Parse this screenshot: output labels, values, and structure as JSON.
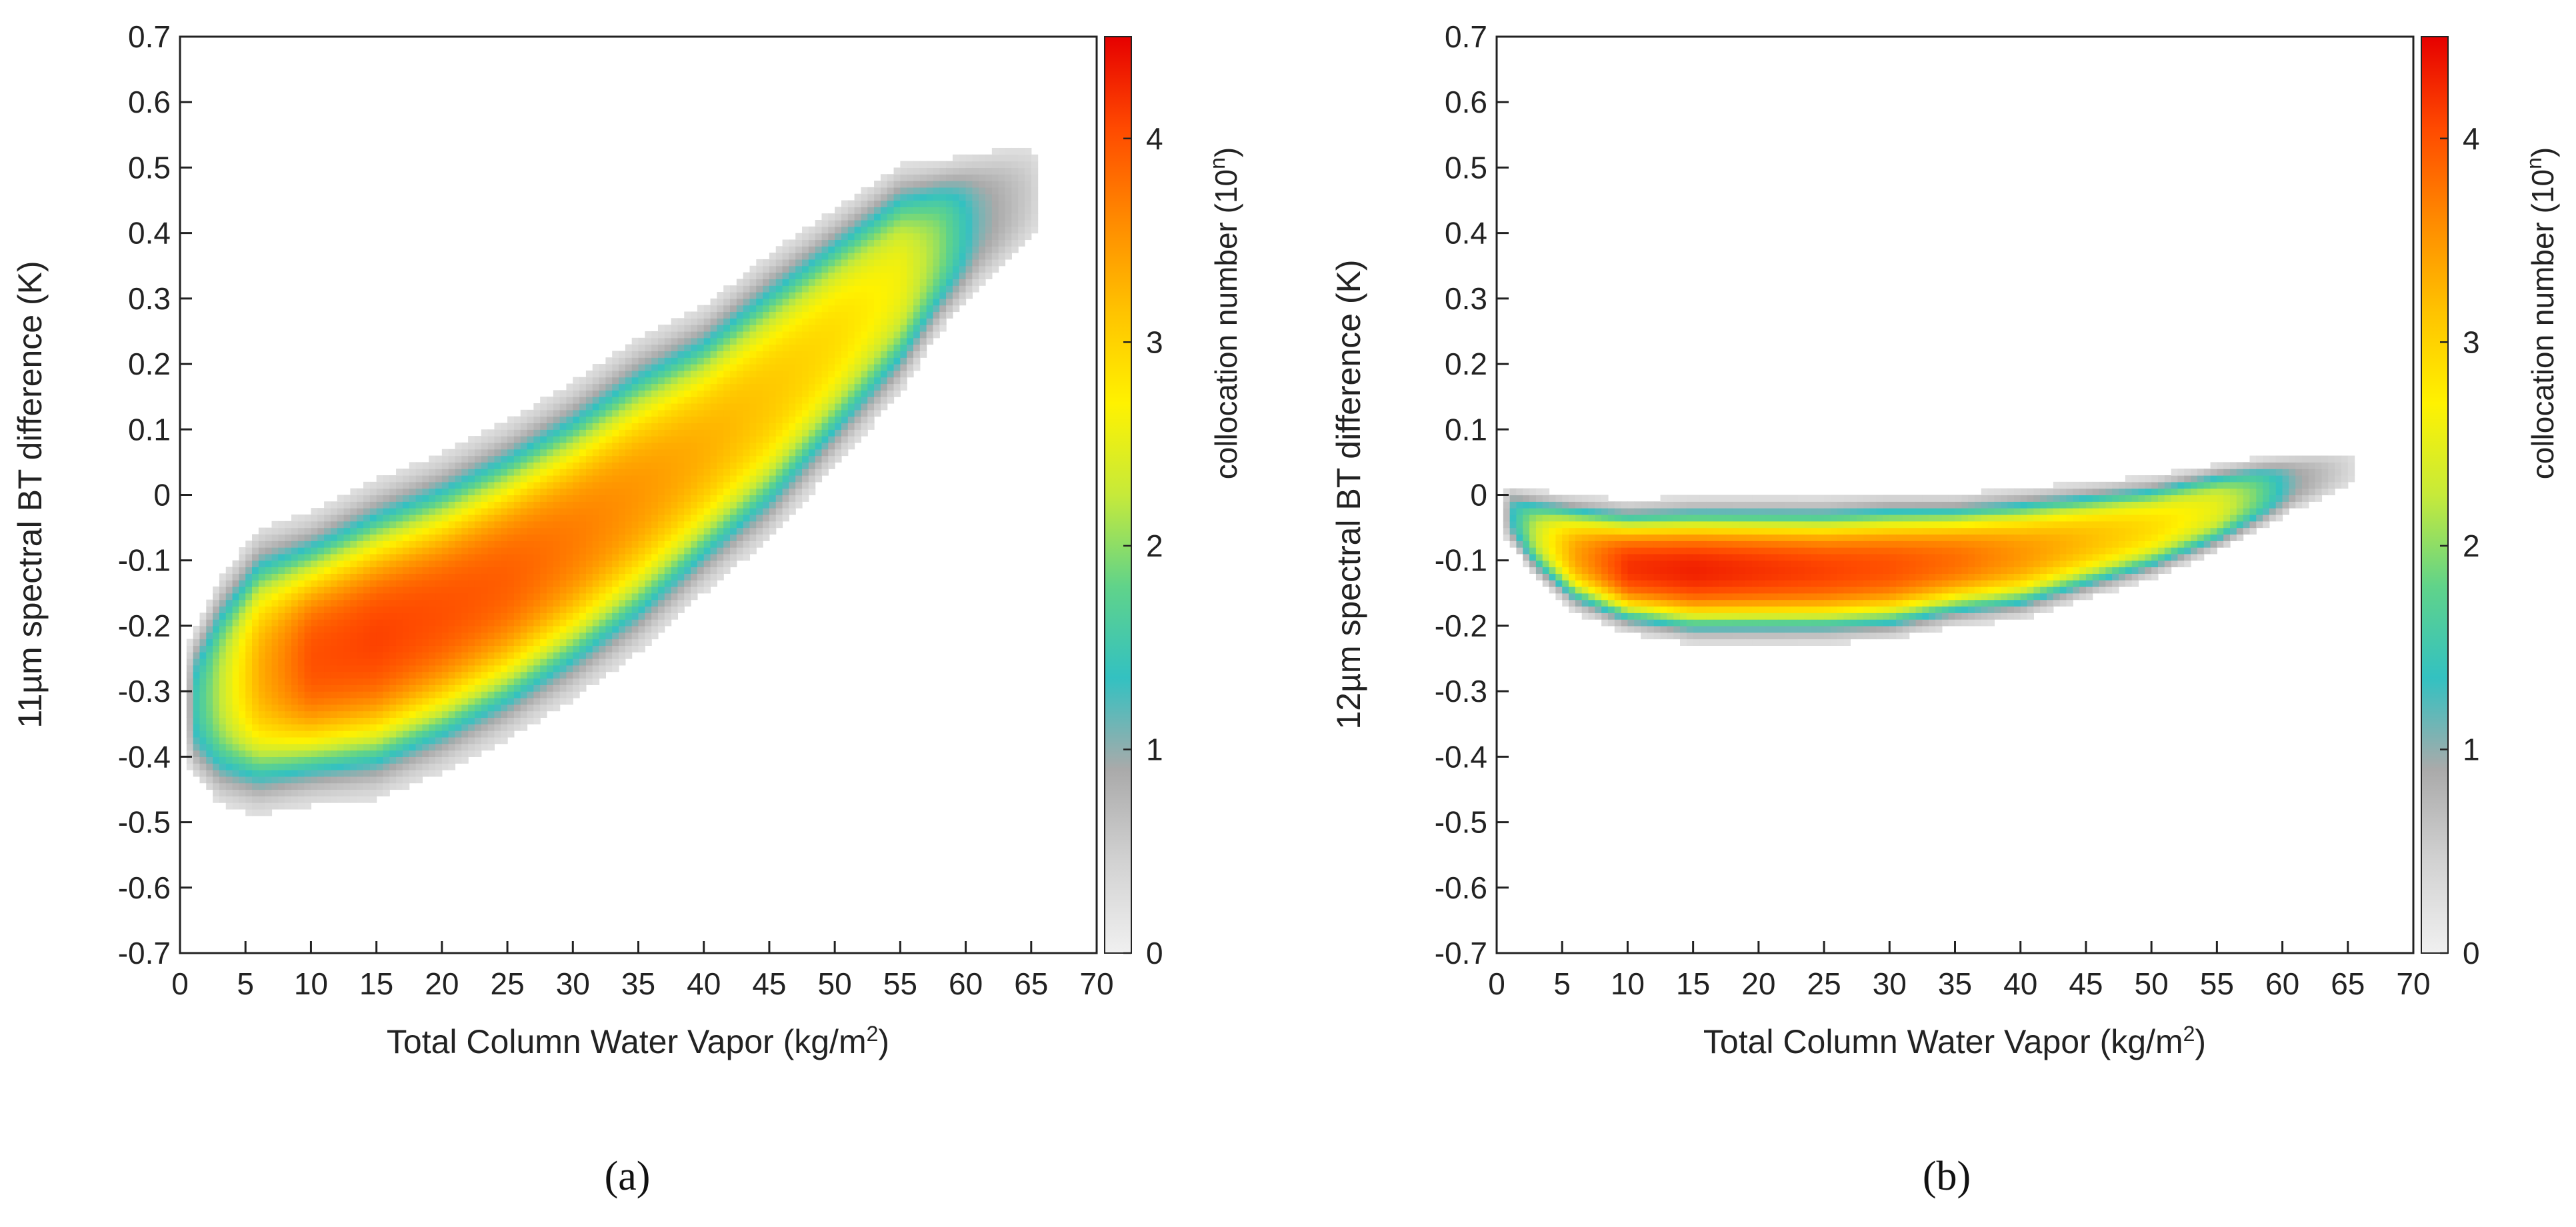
{
  "figure": {
    "captions": [
      "(a)",
      "(b)"
    ]
  },
  "colors": {
    "colormap": [
      "#f0f0f0",
      "#d2d2d2",
      "#aaaaaa",
      "#33c1c1",
      "#60d38a",
      "#c6ea3a",
      "#fff200",
      "#ffc300",
      "#ff8a00",
      "#ff4a00",
      "#e60000"
    ]
  },
  "chart_data": [
    {
      "type": "heatmap",
      "panel": "(a)",
      "xlabel": "Total Column Water Vapor (kg/m²)",
      "xlabel_main": "Total Column Water Vapor (kg/m",
      "xlabel_sup": "2",
      "xlabel_end": ")",
      "ylabel": "11µm spectral BT difference (K)",
      "xlim": [
        0,
        70
      ],
      "ylim": [
        -0.7,
        0.7
      ],
      "xticks": [
        "0",
        "5",
        "10",
        "15",
        "20",
        "25",
        "30",
        "35",
        "40",
        "45",
        "50",
        "55",
        "60",
        "65",
        "70"
      ],
      "yticks": [
        "0.7",
        "0.6",
        "0.5",
        "0.4",
        "0.3",
        "0.2",
        "0.1",
        "0",
        "-0.1",
        "-0.2",
        "-0.3",
        "-0.4",
        "-0.5",
        "-0.6",
        "-0.7"
      ],
      "colorbar": {
        "label_main": "collocation number (10",
        "label_sup": "n",
        "label_end": ")",
        "range": [
          0,
          4.5
        ],
        "ticks": [
          "0",
          "1",
          "2",
          "3",
          "4"
        ]
      },
      "density_ridge": [
        {
          "x": 1,
          "y": -0.32,
          "w": 0.06,
          "peak": 1.4
        },
        {
          "x": 3,
          "y": -0.3,
          "w": 0.09,
          "peak": 2.2
        },
        {
          "x": 6,
          "y": -0.27,
          "w": 0.11,
          "peak": 3.3
        },
        {
          "x": 10,
          "y": -0.25,
          "w": 0.11,
          "peak": 4.0
        },
        {
          "x": 15,
          "y": -0.22,
          "w": 0.12,
          "peak": 4.1
        },
        {
          "x": 20,
          "y": -0.18,
          "w": 0.12,
          "peak": 4.0
        },
        {
          "x": 25,
          "y": -0.13,
          "w": 0.12,
          "peak": 3.9
        },
        {
          "x": 30,
          "y": -0.07,
          "w": 0.12,
          "peak": 3.7
        },
        {
          "x": 35,
          "y": 0.0,
          "w": 0.12,
          "peak": 3.5
        },
        {
          "x": 40,
          "y": 0.07,
          "w": 0.11,
          "peak": 3.3
        },
        {
          "x": 45,
          "y": 0.15,
          "w": 0.11,
          "peak": 3.1
        },
        {
          "x": 50,
          "y": 0.24,
          "w": 0.1,
          "peak": 2.9
        },
        {
          "x": 55,
          "y": 0.33,
          "w": 0.09,
          "peak": 2.6
        },
        {
          "x": 58,
          "y": 0.38,
          "w": 0.07,
          "peak": 2.0
        },
        {
          "x": 61,
          "y": 0.42,
          "w": 0.06,
          "peak": 1.1
        },
        {
          "x": 65,
          "y": 0.46,
          "w": 0.05,
          "peak": 0.5
        }
      ]
    },
    {
      "type": "heatmap",
      "panel": "(b)",
      "xlabel": "Total Column Water Vapor (kg/m²)",
      "xlabel_main": "Total Column Water Vapor (kg/m",
      "xlabel_sup": "2",
      "xlabel_end": ")",
      "ylabel": "12µm spectral BT difference (K)",
      "xlim": [
        0,
        70
      ],
      "ylim": [
        -0.7,
        0.7
      ],
      "xticks": [
        "0",
        "5",
        "10",
        "15",
        "20",
        "25",
        "30",
        "35",
        "40",
        "45",
        "50",
        "55",
        "60",
        "65",
        "70"
      ],
      "yticks": [
        "0.7",
        "0.6",
        "0.5",
        "0.4",
        "0.3",
        "0.2",
        "0.1",
        "0",
        "-0.1",
        "-0.2",
        "-0.3",
        "-0.4",
        "-0.5",
        "-0.6",
        "-0.7"
      ],
      "colorbar": {
        "label_main": "collocation number (10",
        "label_sup": "n",
        "label_end": ")",
        "range": [
          0,
          4.5
        ],
        "ticks": [
          "0",
          "1",
          "2",
          "3",
          "4"
        ]
      },
      "density_ridge": [
        {
          "x": 1,
          "y": -0.03,
          "w": 0.025,
          "peak": 1.2
        },
        {
          "x": 3,
          "y": -0.06,
          "w": 0.035,
          "peak": 2.3
        },
        {
          "x": 6,
          "y": -0.09,
          "w": 0.045,
          "peak": 3.4
        },
        {
          "x": 10,
          "y": -0.11,
          "w": 0.05,
          "peak": 4.2
        },
        {
          "x": 15,
          "y": -0.115,
          "w": 0.055,
          "peak": 4.3
        },
        {
          "x": 20,
          "y": -0.115,
          "w": 0.055,
          "peak": 4.2
        },
        {
          "x": 25,
          "y": -0.115,
          "w": 0.055,
          "peak": 4.1
        },
        {
          "x": 30,
          "y": -0.11,
          "w": 0.055,
          "peak": 4.0
        },
        {
          "x": 35,
          "y": -0.1,
          "w": 0.05,
          "peak": 3.8
        },
        {
          "x": 40,
          "y": -0.09,
          "w": 0.05,
          "peak": 3.5
        },
        {
          "x": 45,
          "y": -0.07,
          "w": 0.045,
          "peak": 3.2
        },
        {
          "x": 50,
          "y": -0.05,
          "w": 0.04,
          "peak": 2.9
        },
        {
          "x": 55,
          "y": -0.02,
          "w": 0.035,
          "peak": 2.5
        },
        {
          "x": 58,
          "y": 0.0,
          "w": 0.03,
          "peak": 1.9
        },
        {
          "x": 61,
          "y": 0.02,
          "w": 0.025,
          "peak": 1.0
        },
        {
          "x": 65,
          "y": 0.04,
          "w": 0.02,
          "peak": 0.4
        }
      ]
    }
  ]
}
